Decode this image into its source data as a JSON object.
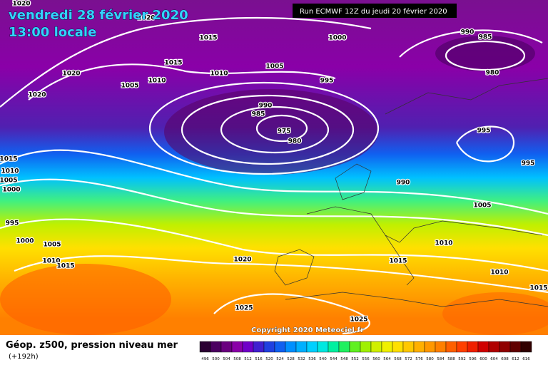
{
  "header": {
    "date": "vendredi 28 février 2020",
    "time": "13:00 locale",
    "run": "Run ECMWF 12Z du jeudi 20 février 2020"
  },
  "copyright": "Copyright 2020 Meteociel.fr",
  "legend": {
    "title": "Géop. z500, pression niveau mer",
    "lead": "(+192h)"
  },
  "colorbar": {
    "labels": [
      496,
      500,
      504,
      508,
      512,
      516,
      520,
      524,
      528,
      532,
      536,
      540,
      544,
      548,
      552,
      556,
      560,
      564,
      568,
      572,
      576,
      580,
      584,
      588,
      592,
      596,
      600,
      604,
      608,
      612,
      616
    ],
    "colors": [
      "#2b0032",
      "#4b0060",
      "#6a007f",
      "#8a00a8",
      "#7000c8",
      "#4020d0",
      "#2040e0",
      "#1060f0",
      "#0090ff",
      "#00b0ff",
      "#00d0ff",
      "#00e8e0",
      "#00f0a0",
      "#20f060",
      "#60f020",
      "#a0f000",
      "#d0f000",
      "#f0f000",
      "#ffe000",
      "#ffc800",
      "#ffb000",
      "#ff9800",
      "#ff8000",
      "#ff6000",
      "#ff4000",
      "#f02000",
      "#d00000",
      "#b00000",
      "#900000",
      "#600000",
      "#300000"
    ]
  },
  "isobar_labels": [
    1020,
    1020,
    1015,
    1000,
    990,
    985,
    1015,
    1005,
    1010,
    1020,
    1005,
    1010,
    995,
    980,
    1020,
    990,
    985,
    975,
    980,
    995,
    1015,
    1010,
    1005,
    1000,
    995,
    990,
    995,
    1005,
    1000,
    1005,
    1010,
    1010,
    1015,
    1020,
    1015,
    1010,
    1025,
    1025,
    1015
  ]
}
